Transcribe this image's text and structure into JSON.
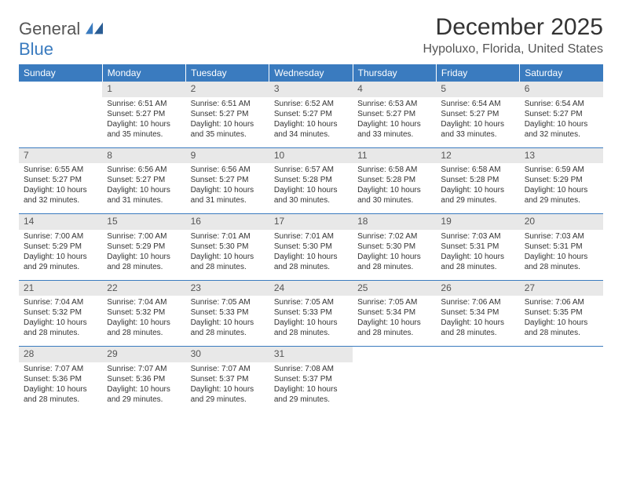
{
  "logo": {
    "line1": "General",
    "line2": "Blue"
  },
  "header": {
    "title": "December 2025",
    "location": "Hypoluxo, Florida, United States"
  },
  "colors": {
    "header_bg": "#3a7bbf",
    "header_text": "#ffffff",
    "daynum_bg": "#e8e8e8",
    "rule": "#3a7bbf"
  },
  "weekdays": [
    "Sunday",
    "Monday",
    "Tuesday",
    "Wednesday",
    "Thursday",
    "Friday",
    "Saturday"
  ],
  "weeks": [
    [
      {
        "n": "",
        "sr": "",
        "ss": "",
        "dl": ""
      },
      {
        "n": "1",
        "sr": "Sunrise: 6:51 AM",
        "ss": "Sunset: 5:27 PM",
        "dl": "Daylight: 10 hours and 35 minutes."
      },
      {
        "n": "2",
        "sr": "Sunrise: 6:51 AM",
        "ss": "Sunset: 5:27 PM",
        "dl": "Daylight: 10 hours and 35 minutes."
      },
      {
        "n": "3",
        "sr": "Sunrise: 6:52 AM",
        "ss": "Sunset: 5:27 PM",
        "dl": "Daylight: 10 hours and 34 minutes."
      },
      {
        "n": "4",
        "sr": "Sunrise: 6:53 AM",
        "ss": "Sunset: 5:27 PM",
        "dl": "Daylight: 10 hours and 33 minutes."
      },
      {
        "n": "5",
        "sr": "Sunrise: 6:54 AM",
        "ss": "Sunset: 5:27 PM",
        "dl": "Daylight: 10 hours and 33 minutes."
      },
      {
        "n": "6",
        "sr": "Sunrise: 6:54 AM",
        "ss": "Sunset: 5:27 PM",
        "dl": "Daylight: 10 hours and 32 minutes."
      }
    ],
    [
      {
        "n": "7",
        "sr": "Sunrise: 6:55 AM",
        "ss": "Sunset: 5:27 PM",
        "dl": "Daylight: 10 hours and 32 minutes."
      },
      {
        "n": "8",
        "sr": "Sunrise: 6:56 AM",
        "ss": "Sunset: 5:27 PM",
        "dl": "Daylight: 10 hours and 31 minutes."
      },
      {
        "n": "9",
        "sr": "Sunrise: 6:56 AM",
        "ss": "Sunset: 5:27 PM",
        "dl": "Daylight: 10 hours and 31 minutes."
      },
      {
        "n": "10",
        "sr": "Sunrise: 6:57 AM",
        "ss": "Sunset: 5:28 PM",
        "dl": "Daylight: 10 hours and 30 minutes."
      },
      {
        "n": "11",
        "sr": "Sunrise: 6:58 AM",
        "ss": "Sunset: 5:28 PM",
        "dl": "Daylight: 10 hours and 30 minutes."
      },
      {
        "n": "12",
        "sr": "Sunrise: 6:58 AM",
        "ss": "Sunset: 5:28 PM",
        "dl": "Daylight: 10 hours and 29 minutes."
      },
      {
        "n": "13",
        "sr": "Sunrise: 6:59 AM",
        "ss": "Sunset: 5:29 PM",
        "dl": "Daylight: 10 hours and 29 minutes."
      }
    ],
    [
      {
        "n": "14",
        "sr": "Sunrise: 7:00 AM",
        "ss": "Sunset: 5:29 PM",
        "dl": "Daylight: 10 hours and 29 minutes."
      },
      {
        "n": "15",
        "sr": "Sunrise: 7:00 AM",
        "ss": "Sunset: 5:29 PM",
        "dl": "Daylight: 10 hours and 28 minutes."
      },
      {
        "n": "16",
        "sr": "Sunrise: 7:01 AM",
        "ss": "Sunset: 5:30 PM",
        "dl": "Daylight: 10 hours and 28 minutes."
      },
      {
        "n": "17",
        "sr": "Sunrise: 7:01 AM",
        "ss": "Sunset: 5:30 PM",
        "dl": "Daylight: 10 hours and 28 minutes."
      },
      {
        "n": "18",
        "sr": "Sunrise: 7:02 AM",
        "ss": "Sunset: 5:30 PM",
        "dl": "Daylight: 10 hours and 28 minutes."
      },
      {
        "n": "19",
        "sr": "Sunrise: 7:03 AM",
        "ss": "Sunset: 5:31 PM",
        "dl": "Daylight: 10 hours and 28 minutes."
      },
      {
        "n": "20",
        "sr": "Sunrise: 7:03 AM",
        "ss": "Sunset: 5:31 PM",
        "dl": "Daylight: 10 hours and 28 minutes."
      }
    ],
    [
      {
        "n": "21",
        "sr": "Sunrise: 7:04 AM",
        "ss": "Sunset: 5:32 PM",
        "dl": "Daylight: 10 hours and 28 minutes."
      },
      {
        "n": "22",
        "sr": "Sunrise: 7:04 AM",
        "ss": "Sunset: 5:32 PM",
        "dl": "Daylight: 10 hours and 28 minutes."
      },
      {
        "n": "23",
        "sr": "Sunrise: 7:05 AM",
        "ss": "Sunset: 5:33 PM",
        "dl": "Daylight: 10 hours and 28 minutes."
      },
      {
        "n": "24",
        "sr": "Sunrise: 7:05 AM",
        "ss": "Sunset: 5:33 PM",
        "dl": "Daylight: 10 hours and 28 minutes."
      },
      {
        "n": "25",
        "sr": "Sunrise: 7:05 AM",
        "ss": "Sunset: 5:34 PM",
        "dl": "Daylight: 10 hours and 28 minutes."
      },
      {
        "n": "26",
        "sr": "Sunrise: 7:06 AM",
        "ss": "Sunset: 5:34 PM",
        "dl": "Daylight: 10 hours and 28 minutes."
      },
      {
        "n": "27",
        "sr": "Sunrise: 7:06 AM",
        "ss": "Sunset: 5:35 PM",
        "dl": "Daylight: 10 hours and 28 minutes."
      }
    ],
    [
      {
        "n": "28",
        "sr": "Sunrise: 7:07 AM",
        "ss": "Sunset: 5:36 PM",
        "dl": "Daylight: 10 hours and 28 minutes."
      },
      {
        "n": "29",
        "sr": "Sunrise: 7:07 AM",
        "ss": "Sunset: 5:36 PM",
        "dl": "Daylight: 10 hours and 29 minutes."
      },
      {
        "n": "30",
        "sr": "Sunrise: 7:07 AM",
        "ss": "Sunset: 5:37 PM",
        "dl": "Daylight: 10 hours and 29 minutes."
      },
      {
        "n": "31",
        "sr": "Sunrise: 7:08 AM",
        "ss": "Sunset: 5:37 PM",
        "dl": "Daylight: 10 hours and 29 minutes."
      },
      {
        "n": "",
        "sr": "",
        "ss": "",
        "dl": ""
      },
      {
        "n": "",
        "sr": "",
        "ss": "",
        "dl": ""
      },
      {
        "n": "",
        "sr": "",
        "ss": "",
        "dl": ""
      }
    ]
  ]
}
